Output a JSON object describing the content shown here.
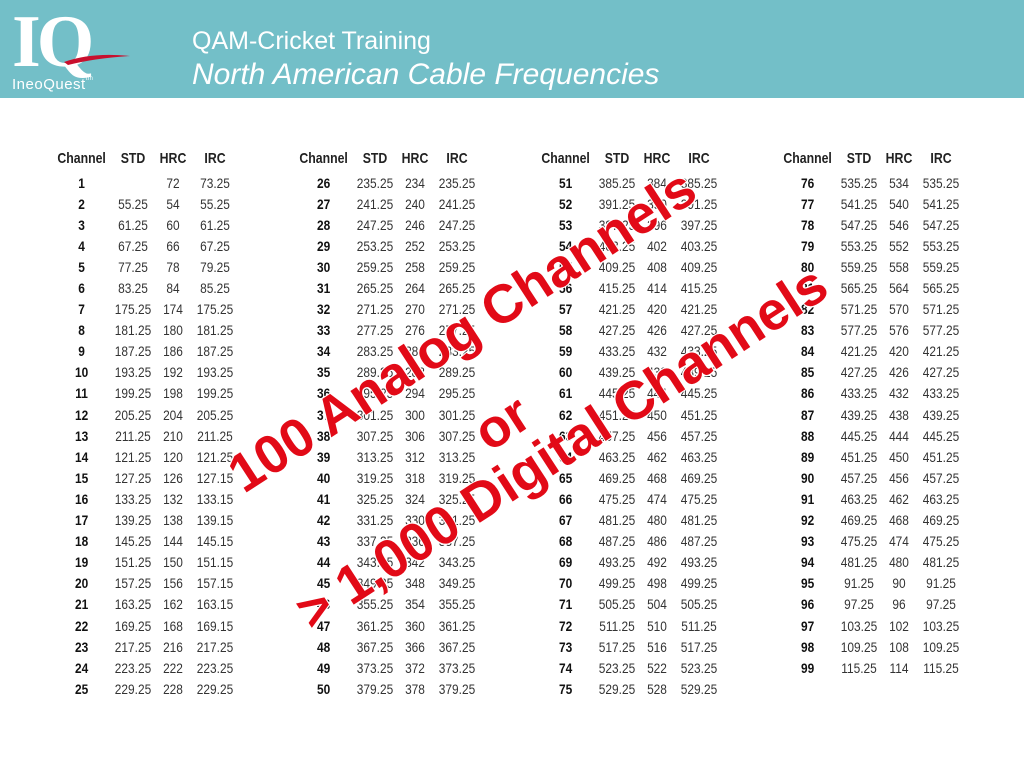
{
  "header": {
    "logo_mark": "IQ",
    "logo_brand": "IneoQuest",
    "logo_tm": "tm",
    "title": "QAM-Cricket Training",
    "subtitle": "North American Cable Frequencies"
  },
  "table": {
    "headers": [
      "Channel",
      "STD",
      "HRC",
      "IRC"
    ],
    "columns": [
      [
        [
          "1",
          "",
          "72",
          "73.25"
        ],
        [
          "2",
          "55.25",
          "54",
          "55.25"
        ],
        [
          "3",
          "61.25",
          "60",
          "61.25"
        ],
        [
          "4",
          "67.25",
          "66",
          "67.25"
        ],
        [
          "5",
          "77.25",
          "78",
          "79.25"
        ],
        [
          "6",
          "83.25",
          "84",
          "85.25"
        ],
        [
          "7",
          "175.25",
          "174",
          "175.25"
        ],
        [
          "8",
          "181.25",
          "180",
          "181.25"
        ],
        [
          "9",
          "187.25",
          "186",
          "187.25"
        ],
        [
          "10",
          "193.25",
          "192",
          "193.25"
        ],
        [
          "11",
          "199.25",
          "198",
          "199.25"
        ],
        [
          "12",
          "205.25",
          "204",
          "205.25"
        ],
        [
          "13",
          "211.25",
          "210",
          "211.25"
        ],
        [
          "14",
          "121.25",
          "120",
          "121.25"
        ],
        [
          "15",
          "127.25",
          "126",
          "127.15"
        ],
        [
          "16",
          "133.25",
          "132",
          "133.15"
        ],
        [
          "17",
          "139.25",
          "138",
          "139.15"
        ],
        [
          "18",
          "145.25",
          "144",
          "145.15"
        ],
        [
          "19",
          "151.25",
          "150",
          "151.15"
        ],
        [
          "20",
          "157.25",
          "156",
          "157.15"
        ],
        [
          "21",
          "163.25",
          "162",
          "163.15"
        ],
        [
          "22",
          "169.25",
          "168",
          "169.15"
        ],
        [
          "23",
          "217.25",
          "216",
          "217.25"
        ],
        [
          "24",
          "223.25",
          "222",
          "223.25"
        ],
        [
          "25",
          "229.25",
          "228",
          "229.25"
        ]
      ],
      [
        [
          "26",
          "235.25",
          "234",
          "235.25"
        ],
        [
          "27",
          "241.25",
          "240",
          "241.25"
        ],
        [
          "28",
          "247.25",
          "246",
          "247.25"
        ],
        [
          "29",
          "253.25",
          "252",
          "253.25"
        ],
        [
          "30",
          "259.25",
          "258",
          "259.25"
        ],
        [
          "31",
          "265.25",
          "264",
          "265.25"
        ],
        [
          "32",
          "271.25",
          "270",
          "271.25"
        ],
        [
          "33",
          "277.25",
          "276",
          "277.25"
        ],
        [
          "34",
          "283.25",
          "282",
          "283.25"
        ],
        [
          "35",
          "289.25",
          "288",
          "289.25"
        ],
        [
          "36",
          "295.25",
          "294",
          "295.25"
        ],
        [
          "37",
          "301.25",
          "300",
          "301.25"
        ],
        [
          "38",
          "307.25",
          "306",
          "307.25"
        ],
        [
          "39",
          "313.25",
          "312",
          "313.25"
        ],
        [
          "40",
          "319.25",
          "318",
          "319.25"
        ],
        [
          "41",
          "325.25",
          "324",
          "325.25"
        ],
        [
          "42",
          "331.25",
          "330",
          "331.25"
        ],
        [
          "43",
          "337.25",
          "336",
          "337.25"
        ],
        [
          "44",
          "343.25",
          "342",
          "343.25"
        ],
        [
          "45",
          "349.25",
          "348",
          "349.25"
        ],
        [
          "46",
          "355.25",
          "354",
          "355.25"
        ],
        [
          "47",
          "361.25",
          "360",
          "361.25"
        ],
        [
          "48",
          "367.25",
          "366",
          "367.25"
        ],
        [
          "49",
          "373.25",
          "372",
          "373.25"
        ],
        [
          "50",
          "379.25",
          "378",
          "379.25"
        ]
      ],
      [
        [
          "51",
          "385.25",
          "384",
          "385.25"
        ],
        [
          "52",
          "391.25",
          "390",
          "391.25"
        ],
        [
          "53",
          "397.25",
          "396",
          "397.25"
        ],
        [
          "54",
          "403.25",
          "402",
          "403.25"
        ],
        [
          "55",
          "409.25",
          "408",
          "409.25"
        ],
        [
          "56",
          "415.25",
          "414",
          "415.25"
        ],
        [
          "57",
          "421.25",
          "420",
          "421.25"
        ],
        [
          "58",
          "427.25",
          "426",
          "427.25"
        ],
        [
          "59",
          "433.25",
          "432",
          "433.25"
        ],
        [
          "60",
          "439.25",
          "438",
          "439.25"
        ],
        [
          "61",
          "445.25",
          "444",
          "445.25"
        ],
        [
          "62",
          "451.25",
          "450",
          "451.25"
        ],
        [
          "63",
          "457.25",
          "456",
          "457.25"
        ],
        [
          "64",
          "463.25",
          "462",
          "463.25"
        ],
        [
          "65",
          "469.25",
          "468",
          "469.25"
        ],
        [
          "66",
          "475.25",
          "474",
          "475.25"
        ],
        [
          "67",
          "481.25",
          "480",
          "481.25"
        ],
        [
          "68",
          "487.25",
          "486",
          "487.25"
        ],
        [
          "69",
          "493.25",
          "492",
          "493.25"
        ],
        [
          "70",
          "499.25",
          "498",
          "499.25"
        ],
        [
          "71",
          "505.25",
          "504",
          "505.25"
        ],
        [
          "72",
          "511.25",
          "510",
          "511.25"
        ],
        [
          "73",
          "517.25",
          "516",
          "517.25"
        ],
        [
          "74",
          "523.25",
          "522",
          "523.25"
        ],
        [
          "75",
          "529.25",
          "528",
          "529.25"
        ]
      ],
      [
        [
          "76",
          "535.25",
          "534",
          "535.25"
        ],
        [
          "77",
          "541.25",
          "540",
          "541.25"
        ],
        [
          "78",
          "547.25",
          "546",
          "547.25"
        ],
        [
          "79",
          "553.25",
          "552",
          "553.25"
        ],
        [
          "80",
          "559.25",
          "558",
          "559.25"
        ],
        [
          "81",
          "565.25",
          "564",
          "565.25"
        ],
        [
          "82",
          "571.25",
          "570",
          "571.25"
        ],
        [
          "83",
          "577.25",
          "576",
          "577.25"
        ],
        [
          "84",
          "421.25",
          "420",
          "421.25"
        ],
        [
          "85",
          "427.25",
          "426",
          "427.25"
        ],
        [
          "86",
          "433.25",
          "432",
          "433.25"
        ],
        [
          "87",
          "439.25",
          "438",
          "439.25"
        ],
        [
          "88",
          "445.25",
          "444",
          "445.25"
        ],
        [
          "89",
          "451.25",
          "450",
          "451.25"
        ],
        [
          "90",
          "457.25",
          "456",
          "457.25"
        ],
        [
          "91",
          "463.25",
          "462",
          "463.25"
        ],
        [
          "92",
          "469.25",
          "468",
          "469.25"
        ],
        [
          "93",
          "475.25",
          "474",
          "475.25"
        ],
        [
          "94",
          "481.25",
          "480",
          "481.25"
        ],
        [
          "95",
          "91.25",
          "90",
          "91.25"
        ],
        [
          "96",
          "97.25",
          "96",
          "97.25"
        ],
        [
          "97",
          "103.25",
          "102",
          "103.25"
        ],
        [
          "98",
          "109.25",
          "108",
          "109.25"
        ],
        [
          "99",
          "115.25",
          "114",
          "115.25"
        ]
      ]
    ]
  },
  "overlay": {
    "line1": "100 Analog Channels",
    "line2": "or",
    "line3": "> 1,000 Digital Channels",
    "color": "#e20a17"
  },
  "colors": {
    "header_bg": "#73bfc8",
    "header_text": "#ffffff"
  }
}
